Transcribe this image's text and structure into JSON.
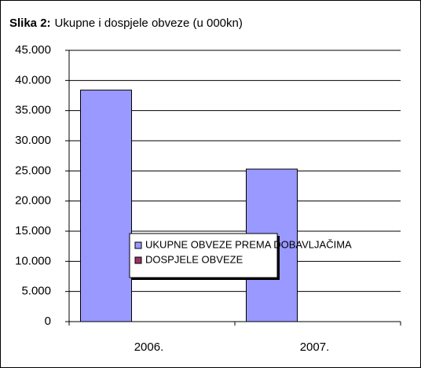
{
  "chart_data": {
    "type": "bar",
    "title": {
      "label": "Slika 2:",
      "text": "Ukupne i dospjele obveze (u 000kn)"
    },
    "categories": [
      "2006.",
      "2007."
    ],
    "series": [
      {
        "name": "UKUPNE OBVEZE PREMA DOBAVLJAČIMA",
        "color": "#9999ff",
        "values": [
          38400,
          25300
        ]
      },
      {
        "name": "DOSPJELE OBVEZE",
        "color": "#993366",
        "values": [
          0,
          0
        ]
      }
    ],
    "ylim": [
      0,
      45000
    ],
    "yticks": [
      0,
      {
        "value": 5000,
        "label": "5.000"
      },
      {
        "value": 10000,
        "label": "10.000"
      },
      {
        "value": 15000,
        "label": "15.000"
      },
      {
        "value": 20000,
        "label": "20.000"
      },
      {
        "value": 25000,
        "label": "25.000"
      },
      {
        "value": 30000,
        "label": "30.000"
      },
      {
        "value": 35000,
        "label": "35.000"
      },
      {
        "value": 40000,
        "label": "40.000"
      },
      {
        "value": 45000,
        "label": "45.000"
      }
    ],
    "grid": true,
    "legend": "center"
  }
}
